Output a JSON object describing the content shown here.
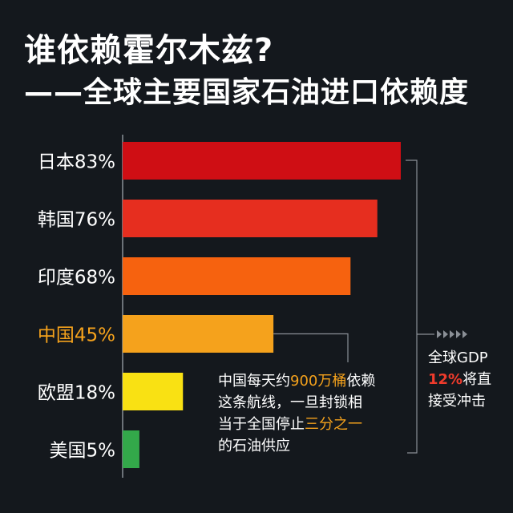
{
  "title": "谁依赖霍尔木兹?",
  "subtitle": "——全球主要国家石油进口依赖度",
  "chart_data": {
    "type": "bar",
    "orientation": "horizontal",
    "categories": [
      "日本83%",
      "韩国76%",
      "印度68%",
      "中国45%",
      "欧盟18%",
      "美国5%"
    ],
    "values": [
      83,
      76,
      68,
      45,
      18,
      5
    ],
    "unit": "%",
    "colors": [
      "#cf0e14",
      "#e62e1f",
      "#f6620f",
      "#f5a21c",
      "#f9e113",
      "#33a84a"
    ],
    "label_colors": [
      "#ffffff",
      "#ffffff",
      "#ffffff",
      "#f5a21c",
      "#ffffff",
      "#ffffff"
    ],
    "xlim": [
      0,
      83
    ],
    "grid": false,
    "legend": "none"
  },
  "annotation_china": {
    "line1_pre": "中国每天约",
    "line1_hl": "900万桶",
    "line1_post": "依赖",
    "line2": "这条航线，一旦封锁相",
    "line3_pre": "当于全国停止",
    "line3_hl": "三分之一",
    "line4": "的石油供应"
  },
  "annotation_gdp": {
    "line1": "全球GDP",
    "hl": "12%",
    "line2_post": "将直",
    "line3": "接受冲击"
  }
}
